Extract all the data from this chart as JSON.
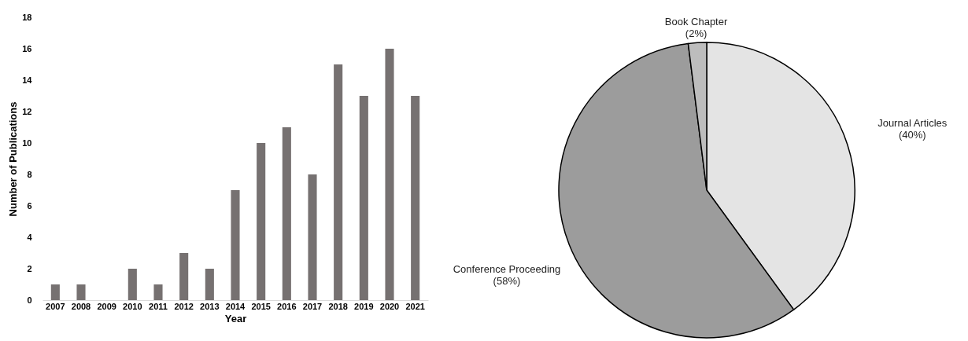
{
  "chart_data": [
    {
      "type": "bar",
      "xlabel": "Year",
      "ylabel": "Number of Publications",
      "categories": [
        "2007",
        "2008",
        "2009",
        "2010",
        "2011",
        "2012",
        "2013",
        "2014",
        "2015",
        "2016",
        "2017",
        "2018",
        "2019",
        "2020",
        "2021"
      ],
      "values": [
        1,
        1,
        0,
        2,
        1,
        3,
        2,
        7,
        10,
        11,
        8,
        15,
        13,
        16,
        13
      ],
      "color": "#767171",
      "ylim": [
        0,
        18
      ],
      "yticks": [
        0,
        2,
        4,
        6,
        8,
        10,
        12,
        14,
        16,
        18
      ]
    },
    {
      "type": "pie",
      "categories": [
        "Journal Articles",
        "Conference Proceeding",
        "Book Chapter"
      ],
      "values": [
        40,
        58,
        2
      ],
      "colors": [
        "#e4e4e4",
        "#9c9c9c",
        "#bdbdbd"
      ],
      "value_labels": [
        "(40%)",
        "(58%)",
        "(2%)"
      ]
    }
  ]
}
